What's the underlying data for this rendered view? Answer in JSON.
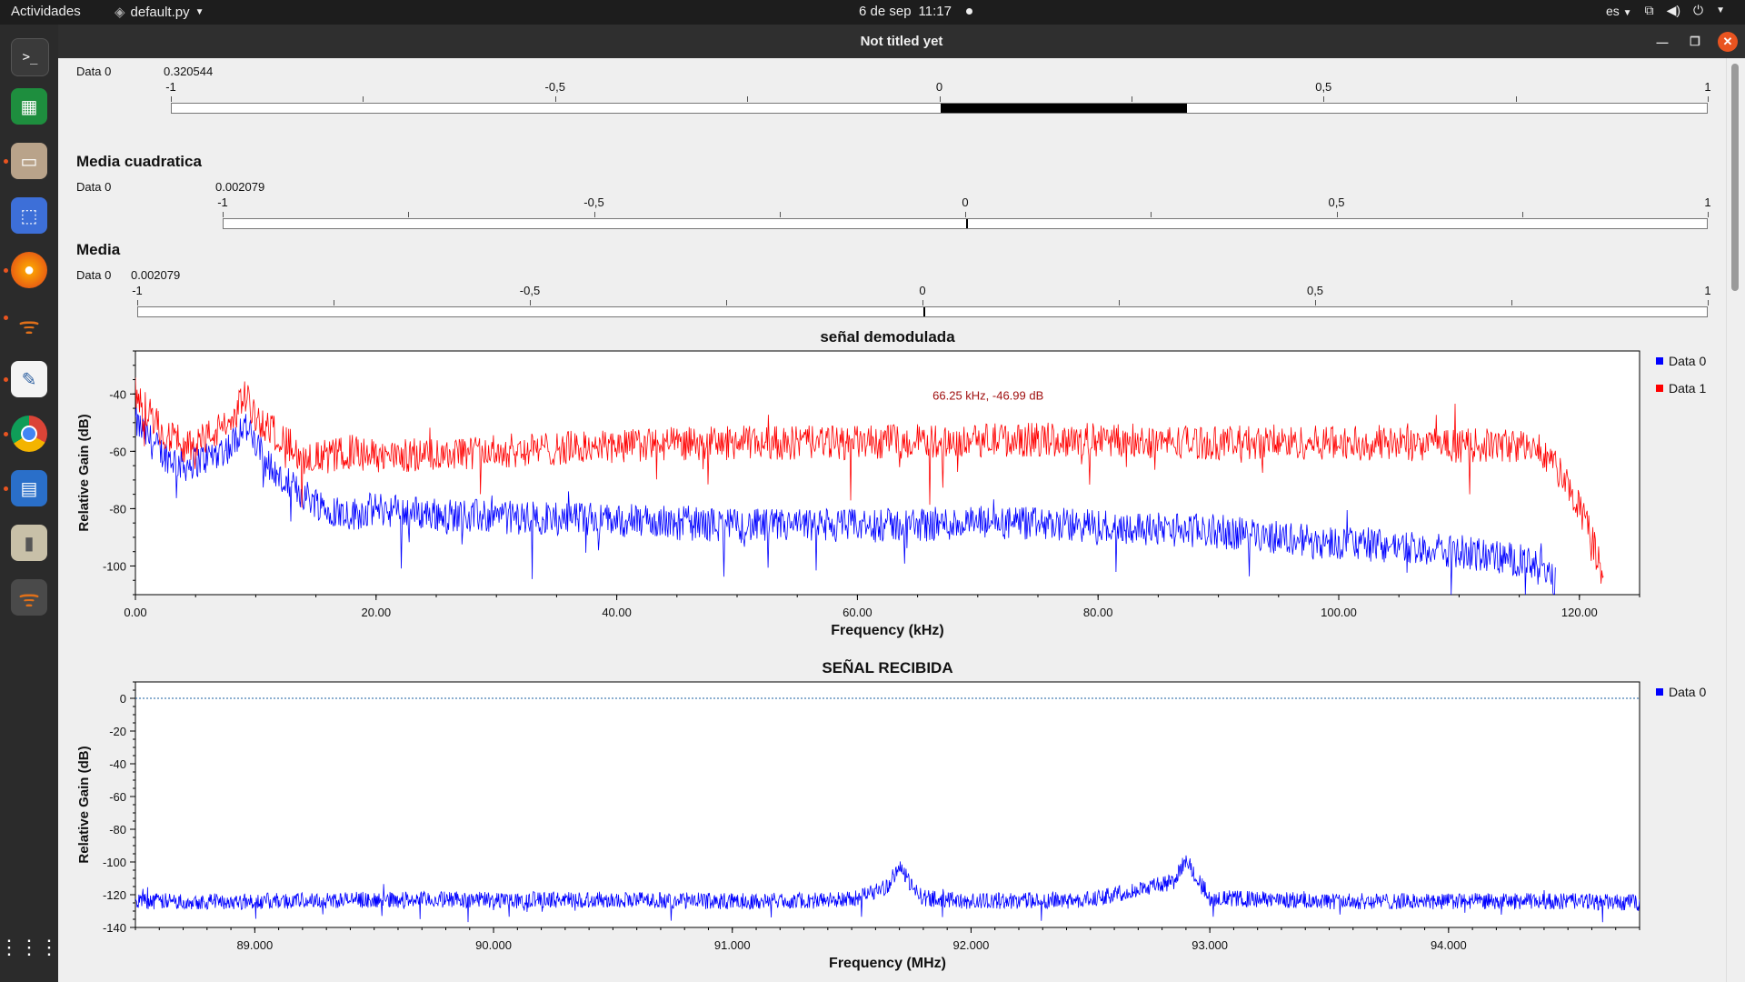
{
  "topbar": {
    "activities": "Actividades",
    "app_name": "default.py",
    "date": "6 de sep",
    "time": "11:17",
    "lang": "es"
  },
  "window": {
    "title": "Not titled yet"
  },
  "gauges": [
    {
      "title": "",
      "series": "Data 0",
      "value": "0.320544",
      "value_num": 0.320544,
      "ticks": [
        "-1",
        "-0,5",
        "0",
        "0,5",
        "1"
      ]
    },
    {
      "title": "Media cuadratica",
      "series": "Data 0",
      "value": "0.002079",
      "value_num": 0.002079,
      "ticks": [
        "-1",
        "-0,5",
        "0",
        "0,5",
        "1"
      ]
    },
    {
      "title": "Media",
      "series": "Data 0",
      "value": "0.002079",
      "value_num": 0.002079,
      "ticks": [
        "-1",
        "-0,5",
        "0",
        "0,5",
        "1"
      ]
    }
  ],
  "chart_data": [
    {
      "type": "line",
      "title": "señal demodulada",
      "xlabel": "Frequency (kHz)",
      "ylabel": "Relative Gain (dB)",
      "xlim": [
        0,
        125
      ],
      "ylim": [
        -110,
        -25
      ],
      "x_ticks": [
        "0.00",
        "20.00",
        "40.00",
        "60.00",
        "80.00",
        "100.00",
        "120.00"
      ],
      "y_ticks": [
        "-40",
        "-60",
        "-80",
        "-100"
      ],
      "annotation": "66.25 kHz, -46.99 dB",
      "legend_position": "right",
      "series": [
        {
          "name": "Data 0",
          "color": "#0000ff",
          "x": [
            0,
            2,
            4,
            6,
            8,
            9,
            10,
            12,
            14,
            16,
            18,
            20,
            25,
            30,
            40,
            50,
            60,
            70,
            80,
            90,
            100,
            105,
            110,
            115,
            117,
            118
          ],
          "y": [
            -50,
            -60,
            -65,
            -62,
            -58,
            -50,
            -58,
            -70,
            -75,
            -80,
            -82,
            -80,
            -82,
            -83,
            -84,
            -86,
            -86,
            -85,
            -86,
            -88,
            -92,
            -93,
            -95,
            -98,
            -102,
            -106
          ]
        },
        {
          "name": "Data 1",
          "color": "#ff0000",
          "x": [
            0,
            2,
            4,
            6,
            8,
            9,
            10,
            12,
            14,
            16,
            18,
            20,
            30,
            40,
            50,
            60,
            70,
            80,
            90,
            100,
            110,
            115,
            117,
            118,
            119,
            120,
            121,
            122
          ],
          "y": [
            -40,
            -52,
            -58,
            -55,
            -50,
            -40,
            -48,
            -55,
            -62,
            -62,
            -60,
            -62,
            -60,
            -58,
            -57,
            -57,
            -56,
            -56,
            -57,
            -57,
            -58,
            -58,
            -60,
            -65,
            -72,
            -80,
            -90,
            -105
          ]
        }
      ]
    },
    {
      "type": "line",
      "title": "SEÑAL RECIBIDA",
      "xlabel": "Frequency (MHz)",
      "ylabel": "Relative Gain (dB)",
      "xlim": [
        88.5,
        94.8
      ],
      "ylim": [
        -140,
        10
      ],
      "x_ticks": [
        "89.000",
        "90.000",
        "91.000",
        "92.000",
        "93.000",
        "94.000"
      ],
      "y_ticks": [
        "0",
        "-20",
        "-40",
        "-60",
        "-80",
        "-100",
        "-120",
        "-140"
      ],
      "reference_line": 0,
      "legend_position": "right",
      "series": [
        {
          "name": "Data 0",
          "color": "#0000ff",
          "x": [
            88.5,
            89.0,
            89.5,
            90.0,
            90.5,
            91.0,
            91.5,
            91.65,
            91.7,
            91.75,
            91.8,
            92.0,
            92.5,
            92.85,
            92.9,
            92.95,
            93.0,
            93.5,
            94.0,
            94.5,
            94.8
          ],
          "y": [
            -124,
            -124,
            -123,
            -123,
            -123,
            -124,
            -123,
            -115,
            -102,
            -115,
            -122,
            -124,
            -123,
            -112,
            -98,
            -110,
            -122,
            -124,
            -124,
            -124,
            -125
          ]
        }
      ]
    }
  ]
}
